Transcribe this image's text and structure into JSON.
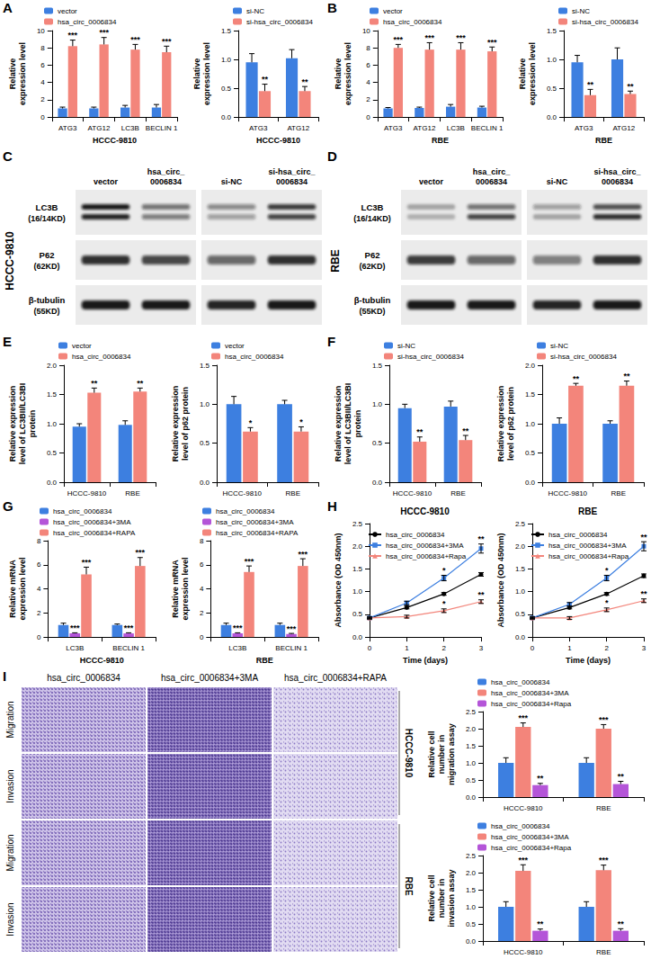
{
  "panels": [
    "A",
    "B",
    "C",
    "D",
    "E",
    "F",
    "G",
    "H",
    "I"
  ],
  "chart_data": [
    {
      "type": "bar",
      "x_label": "HCCC-9810",
      "y_label": "Relative expression level",
      "categories": [
        "ATG3",
        "ATG12",
        "LC3B",
        "BECLIN 1"
      ],
      "series": [
        {
          "name": "vector",
          "color": "#3d7fe0",
          "values": [
            1.0,
            1.0,
            1.1,
            1.1
          ],
          "errors": [
            0.15,
            0.15,
            0.25,
            0.35
          ]
        },
        {
          "name": "hsa_circ_0006834",
          "color": "#f3857b",
          "values": [
            8.2,
            8.4,
            7.8,
            7.5
          ],
          "errors": [
            0.7,
            0.8,
            0.6,
            0.7
          ],
          "significance": [
            "***",
            "***",
            "***",
            "***"
          ]
        }
      ],
      "ylim": [
        0,
        10
      ],
      "yticks": [
        0,
        2,
        4,
        6,
        8,
        10
      ],
      "grid": false,
      "legend": "top-left"
    },
    {
      "type": "bar",
      "x_label": "HCCC-9810",
      "y_label": "Relative expression level",
      "categories": [
        "ATG3",
        "ATG12"
      ],
      "series": [
        {
          "name": "si-NC",
          "color": "#3d7fe0",
          "values": [
            0.95,
            1.02
          ],
          "errors": [
            0.15,
            0.15
          ]
        },
        {
          "name": "si-hsa_circ_0006834",
          "color": "#f3857b",
          "values": [
            0.45,
            0.45
          ],
          "errors": [
            0.12,
            0.08
          ],
          "significance": [
            "**",
            "**"
          ]
        }
      ],
      "ylim": [
        0,
        1.5
      ],
      "yticks": [
        {
          "value": 0,
          "label": "0.0"
        },
        0.5,
        {
          "value": 1,
          "label": "1.0"
        },
        1.5
      ],
      "grid": false,
      "legend": "top-left"
    },
    {
      "type": "bar",
      "x_label": "RBE",
      "y_label": "Relative expression level",
      "categories": [
        "ATG3",
        "ATG12",
        "LC3B",
        "BECLIN 1"
      ],
      "series": [
        {
          "name": "vector",
          "color": "#3d7fe0",
          "values": [
            1.0,
            1.05,
            1.2,
            1.1
          ],
          "errors": [
            0.1,
            0.1,
            0.25,
            0.15
          ]
        },
        {
          "name": "hsa_circ_0006834",
          "color": "#f3857b",
          "values": [
            8.0,
            7.8,
            7.8,
            7.6
          ],
          "errors": [
            0.4,
            0.8,
            0.8,
            0.5
          ],
          "significance": [
            "***",
            "***",
            "***",
            "***"
          ]
        }
      ],
      "ylim": [
        0,
        10
      ],
      "yticks": [
        0,
        2,
        4,
        6,
        8,
        10
      ],
      "grid": false,
      "legend": "top-left"
    },
    {
      "type": "bar",
      "x_label": "RBE",
      "y_label": "Relative expression level",
      "categories": [
        "ATG3",
        "ATG12"
      ],
      "series": [
        {
          "name": "si-NC",
          "color": "#3d7fe0",
          "values": [
            0.95,
            1.0
          ],
          "errors": [
            0.12,
            0.2
          ]
        },
        {
          "name": "si-hsa_circ_0006834",
          "color": "#f3857b",
          "values": [
            0.38,
            0.4
          ],
          "errors": [
            0.1,
            0.05
          ],
          "significance": [
            "**",
            "**"
          ]
        }
      ],
      "ylim": [
        0,
        1.5
      ],
      "yticks": [
        {
          "value": 0,
          "label": "0.0"
        },
        0.5,
        {
          "value": 1,
          "label": "1.0"
        },
        1.5
      ],
      "grid": false,
      "legend": "top-left"
    },
    {
      "type": "bar",
      "y_label": "Relative expression level of LC3BII/LC3BI protein",
      "categories": [
        "HCCC-9810",
        "RBE"
      ],
      "series": [
        {
          "name": "vector",
          "color": "#3d7fe0",
          "values": [
            0.95,
            0.98
          ],
          "errors": [
            0.05,
            0.07
          ]
        },
        {
          "name": "hsa_circ_0006834",
          "color": "#f3857b",
          "values": [
            1.53,
            1.55
          ],
          "errors": [
            0.08,
            0.06
          ],
          "significance": [
            "**",
            "**"
          ]
        }
      ],
      "ylim": [
        0,
        2
      ],
      "yticks": [
        {
          "value": 0,
          "label": "0.0"
        },
        0.5,
        {
          "value": 1,
          "label": "1.0"
        },
        1.5,
        {
          "value": 2,
          "label": "2.0"
        }
      ],
      "grid": false,
      "legend": "top-left"
    },
    {
      "type": "bar",
      "y_label": "Relative expression level of p62 protein",
      "categories": [
        "HCCC-9810",
        "RBE"
      ],
      "series": [
        {
          "name": "vector",
          "color": "#3d7fe0",
          "values": [
            1.0,
            1.0
          ],
          "errors": [
            0.1,
            0.05
          ]
        },
        {
          "name": "hsa_circ_0006834",
          "color": "#f3857b",
          "values": [
            0.65,
            0.65
          ],
          "errors": [
            0.05,
            0.06
          ],
          "significance": [
            "*",
            "*"
          ]
        }
      ],
      "ylim": [
        0,
        1.5
      ],
      "yticks": [
        {
          "value": 0,
          "label": "0.0"
        },
        0.5,
        {
          "value": 1,
          "label": "1.0"
        },
        1.5
      ],
      "grid": false,
      "legend": "top-left"
    },
    {
      "type": "bar",
      "y_label": "Relative expression level of LC3BII/LC3BI protein",
      "categories": [
        "HCCC-9810",
        "RBE"
      ],
      "series": [
        {
          "name": "si-NC",
          "color": "#3d7fe0",
          "values": [
            0.95,
            0.97
          ],
          "errors": [
            0.05,
            0.07
          ]
        },
        {
          "name": "si-hsa_circ_0006834",
          "color": "#f3857b",
          "values": [
            0.52,
            0.54
          ],
          "errors": [
            0.06,
            0.06
          ],
          "significance": [
            "**",
            "**"
          ]
        }
      ],
      "ylim": [
        0,
        1.5
      ],
      "yticks": [
        {
          "value": 0,
          "label": "0.0"
        },
        0.5,
        {
          "value": 1,
          "label": "1.0"
        },
        1.5
      ],
      "grid": false,
      "legend": "top-left"
    },
    {
      "type": "bar",
      "y_label": "Relative expression level of p62 protein",
      "categories": [
        "HCCC-9810",
        "RBE"
      ],
      "series": [
        {
          "name": "si-NC",
          "color": "#3d7fe0",
          "values": [
            1.0,
            1.0
          ],
          "errors": [
            0.1,
            0.05
          ]
        },
        {
          "name": "si-hsa_circ_0006834",
          "color": "#f3857b",
          "values": [
            1.65,
            1.65
          ],
          "errors": [
            0.04,
            0.08
          ],
          "significance": [
            "**",
            "**"
          ]
        }
      ],
      "ylim": [
        0,
        2
      ],
      "yticks": [
        {
          "value": 0,
          "label": "0.0"
        },
        0.5,
        {
          "value": 1,
          "label": "1.0"
        },
        1.5,
        {
          "value": 2,
          "label": "2.0"
        }
      ],
      "grid": false,
      "legend": "top-left"
    },
    {
      "type": "bar",
      "x_label": "HCCC-9810",
      "y_label": "Relative mRNA expression level",
      "categories": [
        "LC3B",
        "BECLIN 1"
      ],
      "series": [
        {
          "name": "hsa_circ_0006834",
          "color": "#3d7fe0",
          "values": [
            1.0,
            1.0
          ],
          "errors": [
            0.15,
            0.08
          ]
        },
        {
          "name": "hsa_circ_0006834+3MA",
          "color": "#b455d8",
          "values": [
            0.3,
            0.3
          ],
          "errors": [
            0.05,
            0.05
          ],
          "significance": [
            "***",
            "***"
          ]
        },
        {
          "name": "hsa_circ_0006834+RAPA",
          "color": "#f3857b",
          "values": [
            5.2,
            5.9
          ],
          "errors": [
            0.6,
            0.7
          ],
          "significance": [
            "***",
            "***"
          ]
        }
      ],
      "ylim": [
        0,
        8
      ],
      "yticks": [
        0,
        2,
        4,
        6,
        8
      ],
      "grid": false,
      "legend": "top-left"
    },
    {
      "type": "bar",
      "x_label": "RBE",
      "y_label": "Relative mRNA expression level",
      "categories": [
        "LC3B",
        "BECLIN 1"
      ],
      "series": [
        {
          "name": "hsa_circ_0006834",
          "color": "#3d7fe0",
          "values": [
            1.0,
            1.0
          ],
          "errors": [
            0.15,
            0.15
          ]
        },
        {
          "name": "hsa_circ_0006834+3MA",
          "color": "#b455d8",
          "values": [
            0.3,
            0.25
          ],
          "errors": [
            0.05,
            0.05
          ],
          "significance": [
            "***",
            "***"
          ]
        },
        {
          "name": "hsa_circ_0006834+RAPA",
          "color": "#f3857b",
          "values": [
            5.4,
            5.9
          ],
          "errors": [
            0.5,
            0.6
          ],
          "significance": [
            "***",
            "***"
          ]
        }
      ],
      "ylim": [
        0,
        8
      ],
      "yticks": [
        0,
        2,
        4,
        6,
        8
      ],
      "grid": false,
      "legend": "top-left"
    },
    {
      "type": "line",
      "title": "HCCC-9810",
      "x_label": "Time (days)",
      "y_label": "Absorbance (OD 450nm)",
      "x": [
        0,
        1,
        2,
        3
      ],
      "series": [
        {
          "name": "hsa_circ_0006834",
          "color": "#000000",
          "marker": "circle",
          "line_style": "solid",
          "values": [
            0.42,
            0.65,
            0.95,
            1.38
          ],
          "errors": [
            0.02,
            0.03,
            0.03,
            0.04
          ]
        },
        {
          "name": "hsa_circ_0006834+3MA",
          "color": "#3d7fe0",
          "marker": "square",
          "line_style": "solid",
          "values": [
            0.42,
            0.75,
            1.3,
            1.95
          ],
          "errors": [
            0.02,
            0.04,
            0.06,
            0.1
          ],
          "significance": [
            null,
            null,
            "*",
            "**"
          ]
        },
        {
          "name": "hsa_circ_0006834+Rapa",
          "color": "#f3857b",
          "marker": "triangle",
          "line_style": "solid",
          "values": [
            0.42,
            0.45,
            0.58,
            0.78
          ],
          "errors": [
            0.02,
            0.03,
            0.04,
            0.04
          ],
          "significance": [
            null,
            null,
            "*",
            "**"
          ]
        }
      ],
      "xlim": [
        0,
        3
      ],
      "xticks": [
        0,
        1,
        2,
        3
      ],
      "ylim": [
        0,
        2.5
      ],
      "yticks": [
        {
          "value": 0,
          "label": "0.0"
        },
        0.5,
        {
          "value": 1,
          "label": "1.0"
        },
        1.5,
        {
          "value": 2,
          "label": "2.0"
        },
        2.5
      ],
      "grid": false,
      "legend": "top-left"
    },
    {
      "type": "line",
      "title": "RBE",
      "x_label": "Time (days)",
      "y_label": "Absorbance (OD 450nm)",
      "x": [
        0,
        1,
        2,
        3
      ],
      "series": [
        {
          "name": "hsa_circ_0006834",
          "color": "#000000",
          "marker": "circle",
          "line_style": "solid",
          "values": [
            0.42,
            0.65,
            0.95,
            1.35
          ],
          "errors": [
            0.02,
            0.03,
            0.03,
            0.04
          ]
        },
        {
          "name": "hsa_circ_0006834+3MA",
          "color": "#3d7fe0",
          "marker": "square",
          "line_style": "solid",
          "values": [
            0.42,
            0.72,
            1.3,
            2.0
          ],
          "errors": [
            0.02,
            0.04,
            0.06,
            0.1
          ],
          "significance": [
            null,
            null,
            "*",
            "**"
          ]
        },
        {
          "name": "hsa_circ_0006834+Rapa",
          "color": "#f3857b",
          "marker": "triangle",
          "line_style": "solid",
          "values": [
            0.42,
            0.42,
            0.6,
            0.8
          ],
          "errors": [
            0.02,
            0.03,
            0.04,
            0.04
          ],
          "significance": [
            null,
            null,
            "*",
            "**"
          ]
        }
      ],
      "xlim": [
        0,
        3
      ],
      "xticks": [
        0,
        1,
        2,
        3
      ],
      "ylim": [
        0,
        2.5
      ],
      "yticks": [
        {
          "value": 0,
          "label": "0.0"
        },
        0.5,
        {
          "value": 1,
          "label": "1.0"
        },
        1.5,
        {
          "value": 2,
          "label": "2.0"
        },
        2.5
      ],
      "grid": false,
      "legend": "top-left"
    },
    {
      "type": "bar",
      "y_label": "Relative cell number in migration assay",
      "categories": [
        "HCCC-9810",
        "RBE"
      ],
      "series": [
        {
          "name": "hsa_circ_0006834",
          "color": "#3d7fe0",
          "values": [
            1.0,
            1.0
          ],
          "errors": [
            0.15,
            0.15
          ]
        },
        {
          "name": "hsa_circ_0006834+3MA",
          "color": "#f3857b",
          "values": [
            2.05,
            2.0
          ],
          "errors": [
            0.12,
            0.12
          ],
          "significance": [
            "***",
            "***"
          ]
        },
        {
          "name": "hsa_circ_0006834+Rapa",
          "color": "#b455d8",
          "values": [
            0.35,
            0.38
          ],
          "errors": [
            0.05,
            0.08
          ],
          "significance": [
            "**",
            "**"
          ]
        }
      ],
      "ylim": [
        0,
        2.5
      ],
      "yticks": [
        {
          "value": 0,
          "label": "0.0"
        },
        0.5,
        {
          "value": 1,
          "label": "1.0"
        },
        1.5,
        {
          "value": 2,
          "label": "2.0"
        },
        2.5
      ],
      "grid": false,
      "legend": "top-left"
    },
    {
      "type": "bar",
      "y_label": "Relative cell number in invasion assay",
      "categories": [
        "HCCC-9810",
        "RBE"
      ],
      "series": [
        {
          "name": "hsa_circ_0006834",
          "color": "#3d7fe0",
          "values": [
            1.0,
            1.0
          ],
          "errors": [
            0.15,
            0.15
          ]
        },
        {
          "name": "hsa_circ_0006834+3MA",
          "color": "#f3857b",
          "values": [
            2.05,
            2.07
          ],
          "errors": [
            0.18,
            0.15
          ],
          "significance": [
            "***",
            "***"
          ]
        },
        {
          "name": "hsa_circ_0006834+Rapa",
          "color": "#b455d8",
          "values": [
            0.3,
            0.3
          ],
          "errors": [
            0.05,
            0.06
          ],
          "significance": [
            "**",
            "**"
          ]
        }
      ],
      "ylim": [
        0,
        2.5
      ],
      "yticks": [
        {
          "value": 0,
          "label": "0.0"
        },
        0.5,
        {
          "value": 1,
          "label": "1.0"
        },
        1.5,
        {
          "value": 2,
          "label": "2.0"
        },
        2.5
      ],
      "grid": false,
      "legend": "top-left"
    }
  ],
  "blots": [
    {
      "cell_line": "HCCC-9810",
      "lanes": [
        "vector",
        "hsa_circ_0006834",
        "si-NC",
        "si-hsa_circ_0006834"
      ],
      "rows": [
        {
          "protein": "LC3B",
          "size": "(16/14KD)"
        },
        {
          "protein": "P62",
          "size": "(62KD)"
        },
        {
          "protein": "β-tubulin",
          "size": "(55KD)"
        }
      ]
    },
    {
      "cell_line": "RBE",
      "lanes": [
        "vector",
        "hsa_circ_0006834",
        "si-NC",
        "si-hsa_circ_0006834"
      ],
      "rows": [
        {
          "protein": "LC3B",
          "size": "(16/14KD)"
        },
        {
          "protein": "P62",
          "size": "(62KD)"
        },
        {
          "protein": "β-tubulin",
          "size": "(55KD)"
        }
      ]
    }
  ],
  "micrographs": {
    "columns": [
      "hsa_circ_0006834",
      "hsa_circ_0006834+3MA",
      "hsa_circ_0006834+RAPA"
    ],
    "groups": [
      {
        "cell_line": "HCCC-9810",
        "rows": [
          "Migration",
          "Invasion"
        ]
      },
      {
        "cell_line": "RBE",
        "rows": [
          "Migration",
          "Invasion"
        ]
      }
    ]
  }
}
